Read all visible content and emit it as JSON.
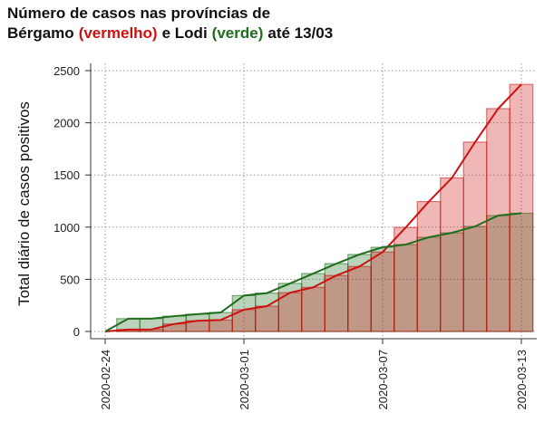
{
  "chart_data": {
    "type": "bar-line",
    "title": [
      "Número de casos nas províncias de",
      "Bérgamo",
      "(vermelho)",
      "e Lodi",
      "(verde)",
      "até 13/03"
    ],
    "y_label": "Total diário de casos positivos",
    "categories": [
      "2020-02-24",
      null,
      null,
      null,
      null,
      null,
      "2020-03-01",
      null,
      null,
      null,
      null,
      null,
      "2020-03-07",
      null,
      null,
      null,
      null,
      null,
      "2020-03-13"
    ],
    "series": [
      {
        "name": "Bérgamo",
        "color": "#cc1111",
        "values": [
          0,
          18,
          20,
          72,
          103,
          110,
          209,
          243,
          372,
          423,
          537,
          623,
          761,
          997,
          1245,
          1472,
          1815,
          2136,
          2368
        ]
      },
      {
        "name": "Lodi",
        "color": "#1e6e1e",
        "values": [
          0,
          123,
          123,
          147,
          166,
          182,
          344,
          368,
          461,
          555,
          650,
          738,
          807,
          833,
          903,
          946,
          1007,
          1111,
          1133
        ]
      }
    ],
    "ylim": [
      0,
      2500
    ],
    "yticks": [
      0,
      500,
      1000,
      1500,
      2000,
      2500
    ],
    "grid": true
  }
}
